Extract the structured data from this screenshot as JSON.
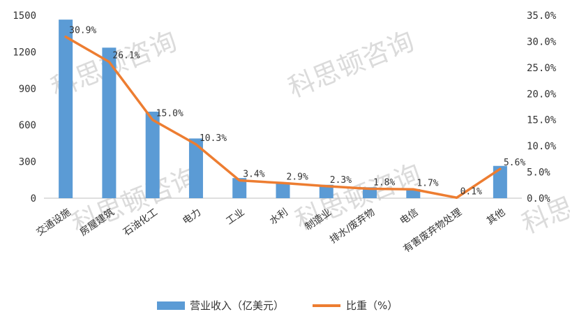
{
  "chart_data": {
    "type": "bar",
    "categories": [
      "交通设施",
      "房屋建筑",
      "石油化工",
      "电力",
      "工业",
      "水利",
      "制造业",
      "排水/废弃物",
      "电信",
      "有害废弃物处理",
      "其他"
    ],
    "series": [
      {
        "name": "营业收入（亿美元）",
        "type": "bar",
        "axis": "left",
        "color": "#5b9bd5",
        "values": [
          1465,
          1235,
          710,
          490,
          165,
          130,
          110,
          90,
          75,
          0,
          265
        ]
      },
      {
        "name": "比重（%）",
        "type": "line",
        "axis": "right",
        "color": "#ed7d31",
        "values": [
          30.9,
          26.1,
          15.0,
          10.3,
          3.4,
          2.9,
          2.3,
          1.8,
          1.7,
          0.1,
          5.6
        ],
        "labels": [
          "30.9%",
          "26.1%",
          "15.0%",
          "10.3%",
          "3.4%",
          "2.9%",
          "2.3%",
          "1.8%",
          "1.7%",
          "0.1%",
          "5.6%"
        ]
      }
    ],
    "y_left": {
      "ylim": [
        0,
        1500
      ],
      "ticks": [
        0,
        300,
        600,
        900,
        1200,
        1500
      ],
      "tick_labels": [
        "0",
        "300",
        "600",
        "900",
        "1200",
        "1500"
      ]
    },
    "y_right": {
      "ylim": [
        0,
        35
      ],
      "ticks": [
        0,
        5,
        10,
        15,
        20,
        25,
        30,
        35
      ],
      "tick_labels": [
        "0.0%",
        "5.0%",
        "10.0%",
        "15.0%",
        "20.0%",
        "25.0%",
        "30.0%",
        "35.0%"
      ]
    },
    "legend_position": "bottom",
    "grid": false,
    "watermark": "科思顿咨询"
  }
}
